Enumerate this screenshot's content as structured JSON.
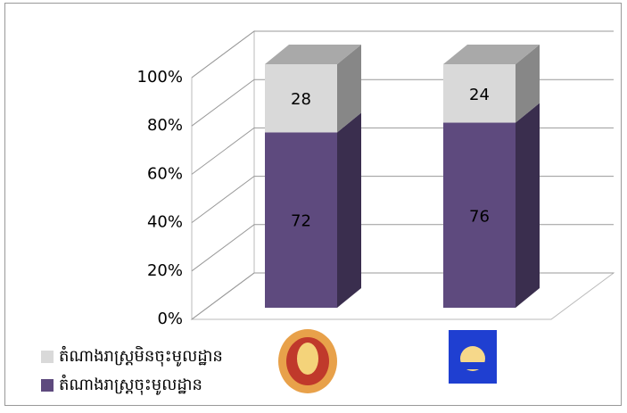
{
  "chart_data": {
    "type": "bar3d_stacked",
    "categories": [
      null,
      null
    ],
    "series": [
      {
        "name": "តំណាងរាស្ត្រចុះមូលដ្ឋាន",
        "color": "#5e4a7e",
        "values": [
          72,
          76
        ]
      },
      {
        "name": "តំណាងរាស្ត្រមិនចុះមូលដ្ឋាន",
        "color": "#d9d9d9",
        "values": [
          28,
          24
        ]
      }
    ],
    "ylim": [
      0,
      100
    ],
    "yticks": [
      {
        "value": 0,
        "label": "0%"
      },
      {
        "value": 20,
        "label": "20%"
      },
      {
        "value": 40,
        "label": "40%"
      },
      {
        "value": 60,
        "label": "60%"
      },
      {
        "value": 80,
        "label": "80%"
      },
      {
        "value": 100,
        "label": "100%"
      }
    ],
    "grid": true,
    "legend": "bottom-left"
  }
}
